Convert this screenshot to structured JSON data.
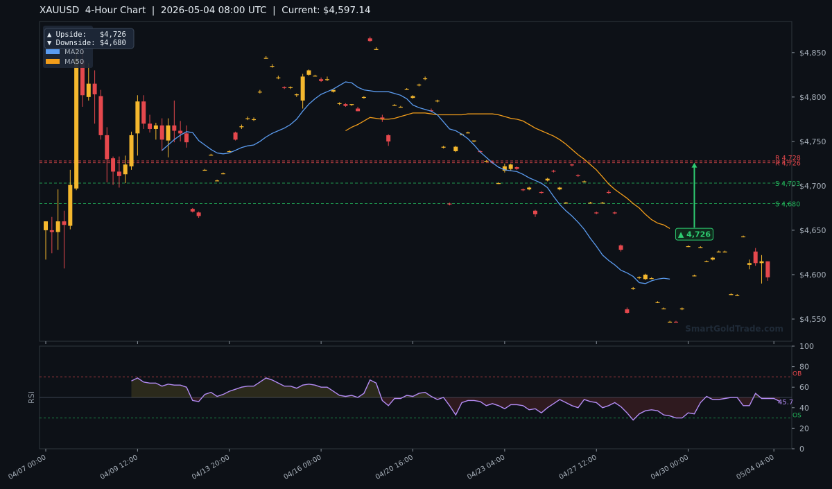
{
  "header": {
    "title": "XAUUSD  4-Hour Chart  |  2026-05-04 08:00 UTC  |  Current: $4,597.14"
  },
  "watermark": "SmartGoldTrade.com",
  "colors": {
    "background": "#0d1117",
    "bull": "#f5b82e",
    "bear": "#e5484d",
    "ma20": "#5b9cf0",
    "ma50": "#f29d1a",
    "resistance": "#e5484d",
    "support": "#22b35a",
    "rsi": "#b48cf5",
    "arrow": "#2ecc71"
  },
  "chart_data": [
    {
      "type": "candlestick",
      "title": "XAUUSD  4-Hour Chart  |  2026-05-04 08:00 UTC  |  Current: $4,597.14",
      "ylim": [
        4525,
        4885
      ],
      "y_ticks": [
        4550,
        4600,
        4650,
        4700,
        4750,
        4800,
        4850
      ],
      "y_tick_labels": [
        "$4,550",
        "$4,600",
        "$4,650",
        "$4,700",
        "$4,750",
        "$4,800",
        "$4,850"
      ],
      "x_tick_labels": [
        "04/07 00:00",
        "04/09 12:00",
        "04/13 20:00",
        "04/16 08:00",
        "04/20 16:00",
        "04/23 04:00",
        "04/27 12:00",
        "04/30 00:00",
        "05/04 04:00"
      ],
      "x_tick_indices": [
        0,
        15,
        30,
        45,
        60,
        75,
        90,
        105,
        119
      ],
      "legend": {
        "position": "top-left",
        "entries": [
          {
            "label": "MA20",
            "color": "#5b9cf0"
          },
          {
            "label": "MA50",
            "color": "#f29d1a"
          }
        ]
      },
      "info_box": {
        "upside": "▲ Upside:   $4,726",
        "downside": "▼ Downside: $4,680"
      },
      "levels": [
        {
          "label": "R 4,728",
          "value": 4728,
          "kind": "resistance"
        },
        {
          "label": "R 4,726",
          "value": 4726,
          "kind": "resistance"
        },
        {
          "label": "S 4,703",
          "value": 4703,
          "kind": "support"
        },
        {
          "label": "S 4,680",
          "value": 4680,
          "kind": "support"
        }
      ],
      "target_arrow": {
        "label": "▲ 4,726",
        "x_index": 106,
        "from": 4653,
        "to": 4726
      },
      "candles": [
        {
          "o": 4650,
          "h": 4660,
          "l": 4617,
          "c": 4660
        },
        {
          "o": 4650,
          "h": 4665,
          "l": 4624,
          "c": 4648
        },
        {
          "o": 4648,
          "h": 4696,
          "l": 4628,
          "c": 4660
        },
        {
          "o": 4660,
          "h": 4672,
          "l": 4607,
          "c": 4656
        },
        {
          "o": 4655,
          "h": 4718,
          "l": 4651,
          "c": 4701
        },
        {
          "o": 4697,
          "h": 4866,
          "l": 4695,
          "c": 4843
        },
        {
          "o": 4841,
          "h": 4862,
          "l": 4789,
          "c": 4802
        },
        {
          "o": 4800,
          "h": 4838,
          "l": 4796,
          "c": 4815
        },
        {
          "o": 4815,
          "h": 4830,
          "l": 4770,
          "c": 4803
        },
        {
          "o": 4801,
          "h": 4808,
          "l": 4752,
          "c": 4757
        },
        {
          "o": 4757,
          "h": 4766,
          "l": 4704,
          "c": 4730
        },
        {
          "o": 4731,
          "h": 4733,
          "l": 4701,
          "c": 4716
        },
        {
          "o": 4716,
          "h": 4733,
          "l": 4698,
          "c": 4711
        },
        {
          "o": 4713,
          "h": 4734,
          "l": 4703,
          "c": 4724
        },
        {
          "o": 4722,
          "h": 4761,
          "l": 4718,
          "c": 4757
        },
        {
          "o": 4759,
          "h": 4802,
          "l": 4734,
          "c": 4795
        },
        {
          "o": 4795,
          "h": 4802,
          "l": 4764,
          "c": 4770
        },
        {
          "o": 4770,
          "h": 4780,
          "l": 4760,
          "c": 4764
        },
        {
          "o": 4764,
          "h": 4771,
          "l": 4752,
          "c": 4768
        },
        {
          "o": 4768,
          "h": 4776,
          "l": 4739,
          "c": 4752
        },
        {
          "o": 4751,
          "h": 4776,
          "l": 4732,
          "c": 4768
        },
        {
          "o": 4768,
          "h": 4796,
          "l": 4749,
          "c": 4762
        },
        {
          "o": 4762,
          "h": 4773,
          "l": 4750,
          "c": 4759
        },
        {
          "o": 4759,
          "h": 4768,
          "l": 4743,
          "c": 4749
        },
        {
          "o": 4674,
          "h": 4675,
          "l": 4670,
          "c": 4671
        },
        {
          "o": 4670,
          "h": 4671,
          "l": 4664,
          "c": 4666
        },
        {
          "o": 4718,
          "h": 4719,
          "l": 4717,
          "c": 4718
        },
        {
          "o": 4735,
          "h": 4736,
          "l": 4734,
          "c": 4735
        },
        {
          "o": 4706,
          "h": 4707,
          "l": 4705,
          "c": 4706
        },
        {
          "o": 4714,
          "h": 4715,
          "l": 4713,
          "c": 4714
        },
        {
          "o": 4739,
          "h": 4740,
          "l": 4738,
          "c": 4739
        },
        {
          "o": 4760,
          "h": 4761,
          "l": 4751,
          "c": 4752
        },
        {
          "o": 4766,
          "h": 4769,
          "l": 4764,
          "c": 4767
        },
        {
          "o": 4776,
          "h": 4778,
          "l": 4774,
          "c": 4776
        },
        {
          "o": 4775,
          "h": 4777,
          "l": 4773,
          "c": 4775
        },
        {
          "o": 4806,
          "h": 4808,
          "l": 4804,
          "c": 4806
        },
        {
          "o": 4844,
          "h": 4846,
          "l": 4843,
          "c": 4844
        },
        {
          "o": 4835,
          "h": 4837,
          "l": 4833,
          "c": 4835
        },
        {
          "o": 4822,
          "h": 4824,
          "l": 4820,
          "c": 4822
        },
        {
          "o": 4811,
          "h": 4812,
          "l": 4809,
          "c": 4810
        },
        {
          "o": 4811,
          "h": 4812,
          "l": 4809,
          "c": 4811
        },
        {
          "o": 4802,
          "h": 4804,
          "l": 4800,
          "c": 4803
        },
        {
          "o": 4796,
          "h": 4826,
          "l": 4787,
          "c": 4823
        },
        {
          "o": 4825,
          "h": 4831,
          "l": 4824,
          "c": 4830
        },
        {
          "o": 4824,
          "h": 4825,
          "l": 4823,
          "c": 4824
        },
        {
          "o": 4820,
          "h": 4822,
          "l": 4817,
          "c": 4818
        },
        {
          "o": 4820,
          "h": 4823,
          "l": 4818,
          "c": 4820
        },
        {
          "o": 4806,
          "h": 4808,
          "l": 4805,
          "c": 4808
        },
        {
          "o": 4793,
          "h": 4794,
          "l": 4791,
          "c": 4793
        },
        {
          "o": 4792,
          "h": 4793,
          "l": 4789,
          "c": 4790
        },
        {
          "o": 4791,
          "h": 4792,
          "l": 4790,
          "c": 4792
        },
        {
          "o": 4787,
          "h": 4789,
          "l": 4784,
          "c": 4784
        },
        {
          "o": 4799,
          "h": 4801,
          "l": 4798,
          "c": 4800
        },
        {
          "o": 4866,
          "h": 4868,
          "l": 4862,
          "c": 4863
        },
        {
          "o": 4854,
          "h": 4856,
          "l": 4853,
          "c": 4854
        },
        {
          "o": 4777,
          "h": 4780,
          "l": 4772,
          "c": 4775
        },
        {
          "o": 4757,
          "h": 4758,
          "l": 4745,
          "c": 4750
        },
        {
          "o": 4791,
          "h": 4792,
          "l": 4790,
          "c": 4791
        },
        {
          "o": 4789,
          "h": 4790,
          "l": 4788,
          "c": 4789
        },
        {
          "o": 4809,
          "h": 4810,
          "l": 4808,
          "c": 4809
        },
        {
          "o": 4799,
          "h": 4802,
          "l": 4798,
          "c": 4801
        },
        {
          "o": 4813,
          "h": 4815,
          "l": 4812,
          "c": 4814
        },
        {
          "o": 4821,
          "h": 4823,
          "l": 4819,
          "c": 4821
        },
        {
          "o": 4785,
          "h": 4787,
          "l": 4783,
          "c": 4784
        },
        {
          "o": 4795,
          "h": 4797,
          "l": 4794,
          "c": 4796
        },
        {
          "o": 4743,
          "h": 4745,
          "l": 4742,
          "c": 4744
        },
        {
          "o": 4680,
          "h": 4681,
          "l": 4678,
          "c": 4679
        },
        {
          "o": 4739,
          "h": 4745,
          "l": 4738,
          "c": 4744
        },
        {
          "o": 4758,
          "h": 4759,
          "l": 4757,
          "c": 4758
        },
        {
          "o": 4760,
          "h": 4761,
          "l": 4759,
          "c": 4760
        },
        {
          "o": 4750,
          "h": 4751,
          "l": 4749,
          "c": 4751
        },
        {
          "o": 4739,
          "h": 4740,
          "l": 4737,
          "c": 4738
        },
        {
          "o": 4728,
          "h": 4729,
          "l": 4727,
          "c": 4728
        },
        {
          "o": 4727,
          "h": 4728,
          "l": 4725,
          "c": 4726
        },
        {
          "o": 4703,
          "h": 4704,
          "l": 4702,
          "c": 4703
        },
        {
          "o": 4717,
          "h": 4725,
          "l": 4715,
          "c": 4722
        },
        {
          "o": 4719,
          "h": 4725,
          "l": 4717,
          "c": 4724
        },
        {
          "o": 4721,
          "h": 4722,
          "l": 4718,
          "c": 4719
        },
        {
          "o": 4696,
          "h": 4697,
          "l": 4694,
          "c": 4695
        },
        {
          "o": 4696,
          "h": 4699,
          "l": 4695,
          "c": 4698
        },
        {
          "o": 4672,
          "h": 4673,
          "l": 4665,
          "c": 4668
        },
        {
          "o": 4693,
          "h": 4694,
          "l": 4691,
          "c": 4692
        },
        {
          "o": 4706,
          "h": 4709,
          "l": 4705,
          "c": 4708
        },
        {
          "o": 4717,
          "h": 4718,
          "l": 4715,
          "c": 4716
        },
        {
          "o": 4696,
          "h": 4699,
          "l": 4695,
          "c": 4698
        },
        {
          "o": 4681,
          "h": 4682,
          "l": 4680,
          "c": 4681
        },
        {
          "o": 4724,
          "h": 4725,
          "l": 4722,
          "c": 4723
        },
        {
          "o": 4712,
          "h": 4713,
          "l": 4710,
          "c": 4711
        },
        {
          "o": 4705,
          "h": 4706,
          "l": 4704,
          "c": 4705
        },
        {
          "o": 4681,
          "h": 4682,
          "l": 4680,
          "c": 4681
        },
        {
          "o": 4670,
          "h": 4671,
          "l": 4668,
          "c": 4669
        },
        {
          "o": 4681,
          "h": 4682,
          "l": 4680,
          "c": 4681
        },
        {
          "o": 4693,
          "h": 4695,
          "l": 4691,
          "c": 4692
        },
        {
          "o": 4670,
          "h": 4671,
          "l": 4668,
          "c": 4669
        },
        {
          "o": 4633,
          "h": 4634,
          "l": 4626,
          "c": 4628
        },
        {
          "o": 4561,
          "h": 4563,
          "l": 4556,
          "c": 4557
        },
        {
          "o": 4584,
          "h": 4586,
          "l": 4583,
          "c": 4585
        },
        {
          "o": 4596,
          "h": 4598,
          "l": 4595,
          "c": 4597
        },
        {
          "o": 4595,
          "h": 4601,
          "l": 4594,
          "c": 4600
        },
        {
          "o": 4596,
          "h": 4597,
          "l": 4595,
          "c": 4596
        },
        {
          "o": 4569,
          "h": 4570,
          "l": 4568,
          "c": 4569
        },
        {
          "o": 4562,
          "h": 4563,
          "l": 4561,
          "c": 4562
        },
        {
          "o": 4547,
          "h": 4548,
          "l": 4546,
          "c": 4547
        },
        {
          "o": 4547,
          "h": 4548,
          "l": 4546,
          "c": 4546
        },
        {
          "o": 4561,
          "h": 4563,
          "l": 4560,
          "c": 4562
        },
        {
          "o": 4632,
          "h": 4633,
          "l": 4631,
          "c": 4632
        },
        {
          "o": 4599,
          "h": 4600,
          "l": 4598,
          "c": 4599
        },
        {
          "o": 4631,
          "h": 4632,
          "l": 4630,
          "c": 4631
        },
        {
          "o": 4615,
          "h": 4616,
          "l": 4614,
          "c": 4615
        },
        {
          "o": 4617,
          "h": 4620,
          "l": 4616,
          "c": 4619
        },
        {
          "o": 4626,
          "h": 4627,
          "l": 4625,
          "c": 4626
        },
        {
          "o": 4626,
          "h": 4627,
          "l": 4625,
          "c": 4626
        },
        {
          "o": 4578,
          "h": 4579,
          "l": 4577,
          "c": 4578
        },
        {
          "o": 4577,
          "h": 4578,
          "l": 4576,
          "c": 4577
        },
        {
          "o": 4643,
          "h": 4644,
          "l": 4642,
          "c": 4643
        },
        {
          "o": 4611,
          "h": 4617,
          "l": 4606,
          "c": 4613
        },
        {
          "o": 4626,
          "h": 4630,
          "l": 4610,
          "c": 4613
        },
        {
          "o": 4613,
          "h": 4622,
          "l": 4590,
          "c": 4615
        },
        {
          "o": 4615,
          "h": 4615,
          "l": 4593,
          "c": 4597
        }
      ],
      "ma20": {
        "start_index": 19,
        "values": [
          4740,
          4746,
          4752,
          4757,
          4761,
          4760,
          4751,
          4746,
          4741,
          4737,
          4736,
          4737,
          4740,
          4743,
          4745,
          4746,
          4750,
          4755,
          4759,
          4762,
          4765,
          4769,
          4775,
          4784,
          4792,
          4798,
          4803,
          4806,
          4809,
          4813,
          4817,
          4816,
          4811,
          4808,
          4807,
          4806,
          4806,
          4806,
          4804,
          4802,
          4798,
          4791,
          4788,
          4786,
          4784,
          4780,
          4772,
          4764,
          4762,
          4758,
          4753,
          4746,
          4738,
          4732,
          4726,
          4721,
          4718,
          4717,
          4716,
          4713,
          4709,
          4706,
          4703,
          4698,
          4688,
          4679,
          4672,
          4666,
          4659,
          4651,
          4641,
          4632,
          4622,
          4616,
          4611,
          4605,
          4602,
          4598,
          4591,
          4590,
          4593,
          4595,
          4596,
          4595
        ]
      },
      "ma50": {
        "start_index": 49,
        "values": [
          4762,
          4766,
          4769,
          4773,
          4777,
          4776,
          4775,
          4775,
          4776,
          4778,
          4780,
          4782,
          4782,
          4782,
          4781,
          4780,
          4780,
          4780,
          4780,
          4780,
          4781,
          4781,
          4781,
          4781,
          4781,
          4780,
          4778,
          4776,
          4775,
          4773,
          4769,
          4765,
          4762,
          4759,
          4756,
          4752,
          4747,
          4741,
          4735,
          4730,
          4724,
          4718,
          4710,
          4702,
          4696,
          4691,
          4686,
          4680,
          4675,
          4668,
          4662,
          4658,
          4656,
          4652
        ]
      }
    },
    {
      "type": "line",
      "ylabel": "RSI",
      "ylim": [
        0,
        100
      ],
      "y_ticks": [
        0,
        20,
        40,
        60,
        80,
        100
      ],
      "levels": [
        {
          "label": "OB",
          "value": 70
        },
        {
          "label": "OS",
          "value": 30
        }
      ],
      "last_value_label": "45.7",
      "start_index": 14,
      "values": [
        66,
        69,
        65,
        64,
        64,
        61,
        63,
        62,
        62,
        60,
        47,
        46,
        53,
        55,
        51,
        53,
        56,
        58,
        60,
        61,
        61,
        65,
        69,
        67,
        64,
        61,
        61,
        59,
        62,
        63,
        62,
        60,
        60,
        56,
        52,
        51,
        52,
        50,
        54,
        67,
        64,
        47,
        42,
        49,
        49,
        52,
        51,
        54,
        55,
        51,
        48,
        50,
        42,
        33,
        45,
        47,
        47,
        46,
        42,
        44,
        42,
        39,
        43,
        43,
        42,
        38,
        39,
        35,
        40,
        44,
        48,
        45,
        42,
        40,
        48,
        46,
        45,
        40,
        42,
        45,
        41,
        35,
        28,
        34,
        37,
        38,
        37,
        33,
        32,
        30,
        30,
        35,
        34,
        45,
        51,
        48,
        48,
        49,
        50,
        50,
        42,
        42,
        54,
        49,
        49,
        49,
        46
      ]
    }
  ]
}
